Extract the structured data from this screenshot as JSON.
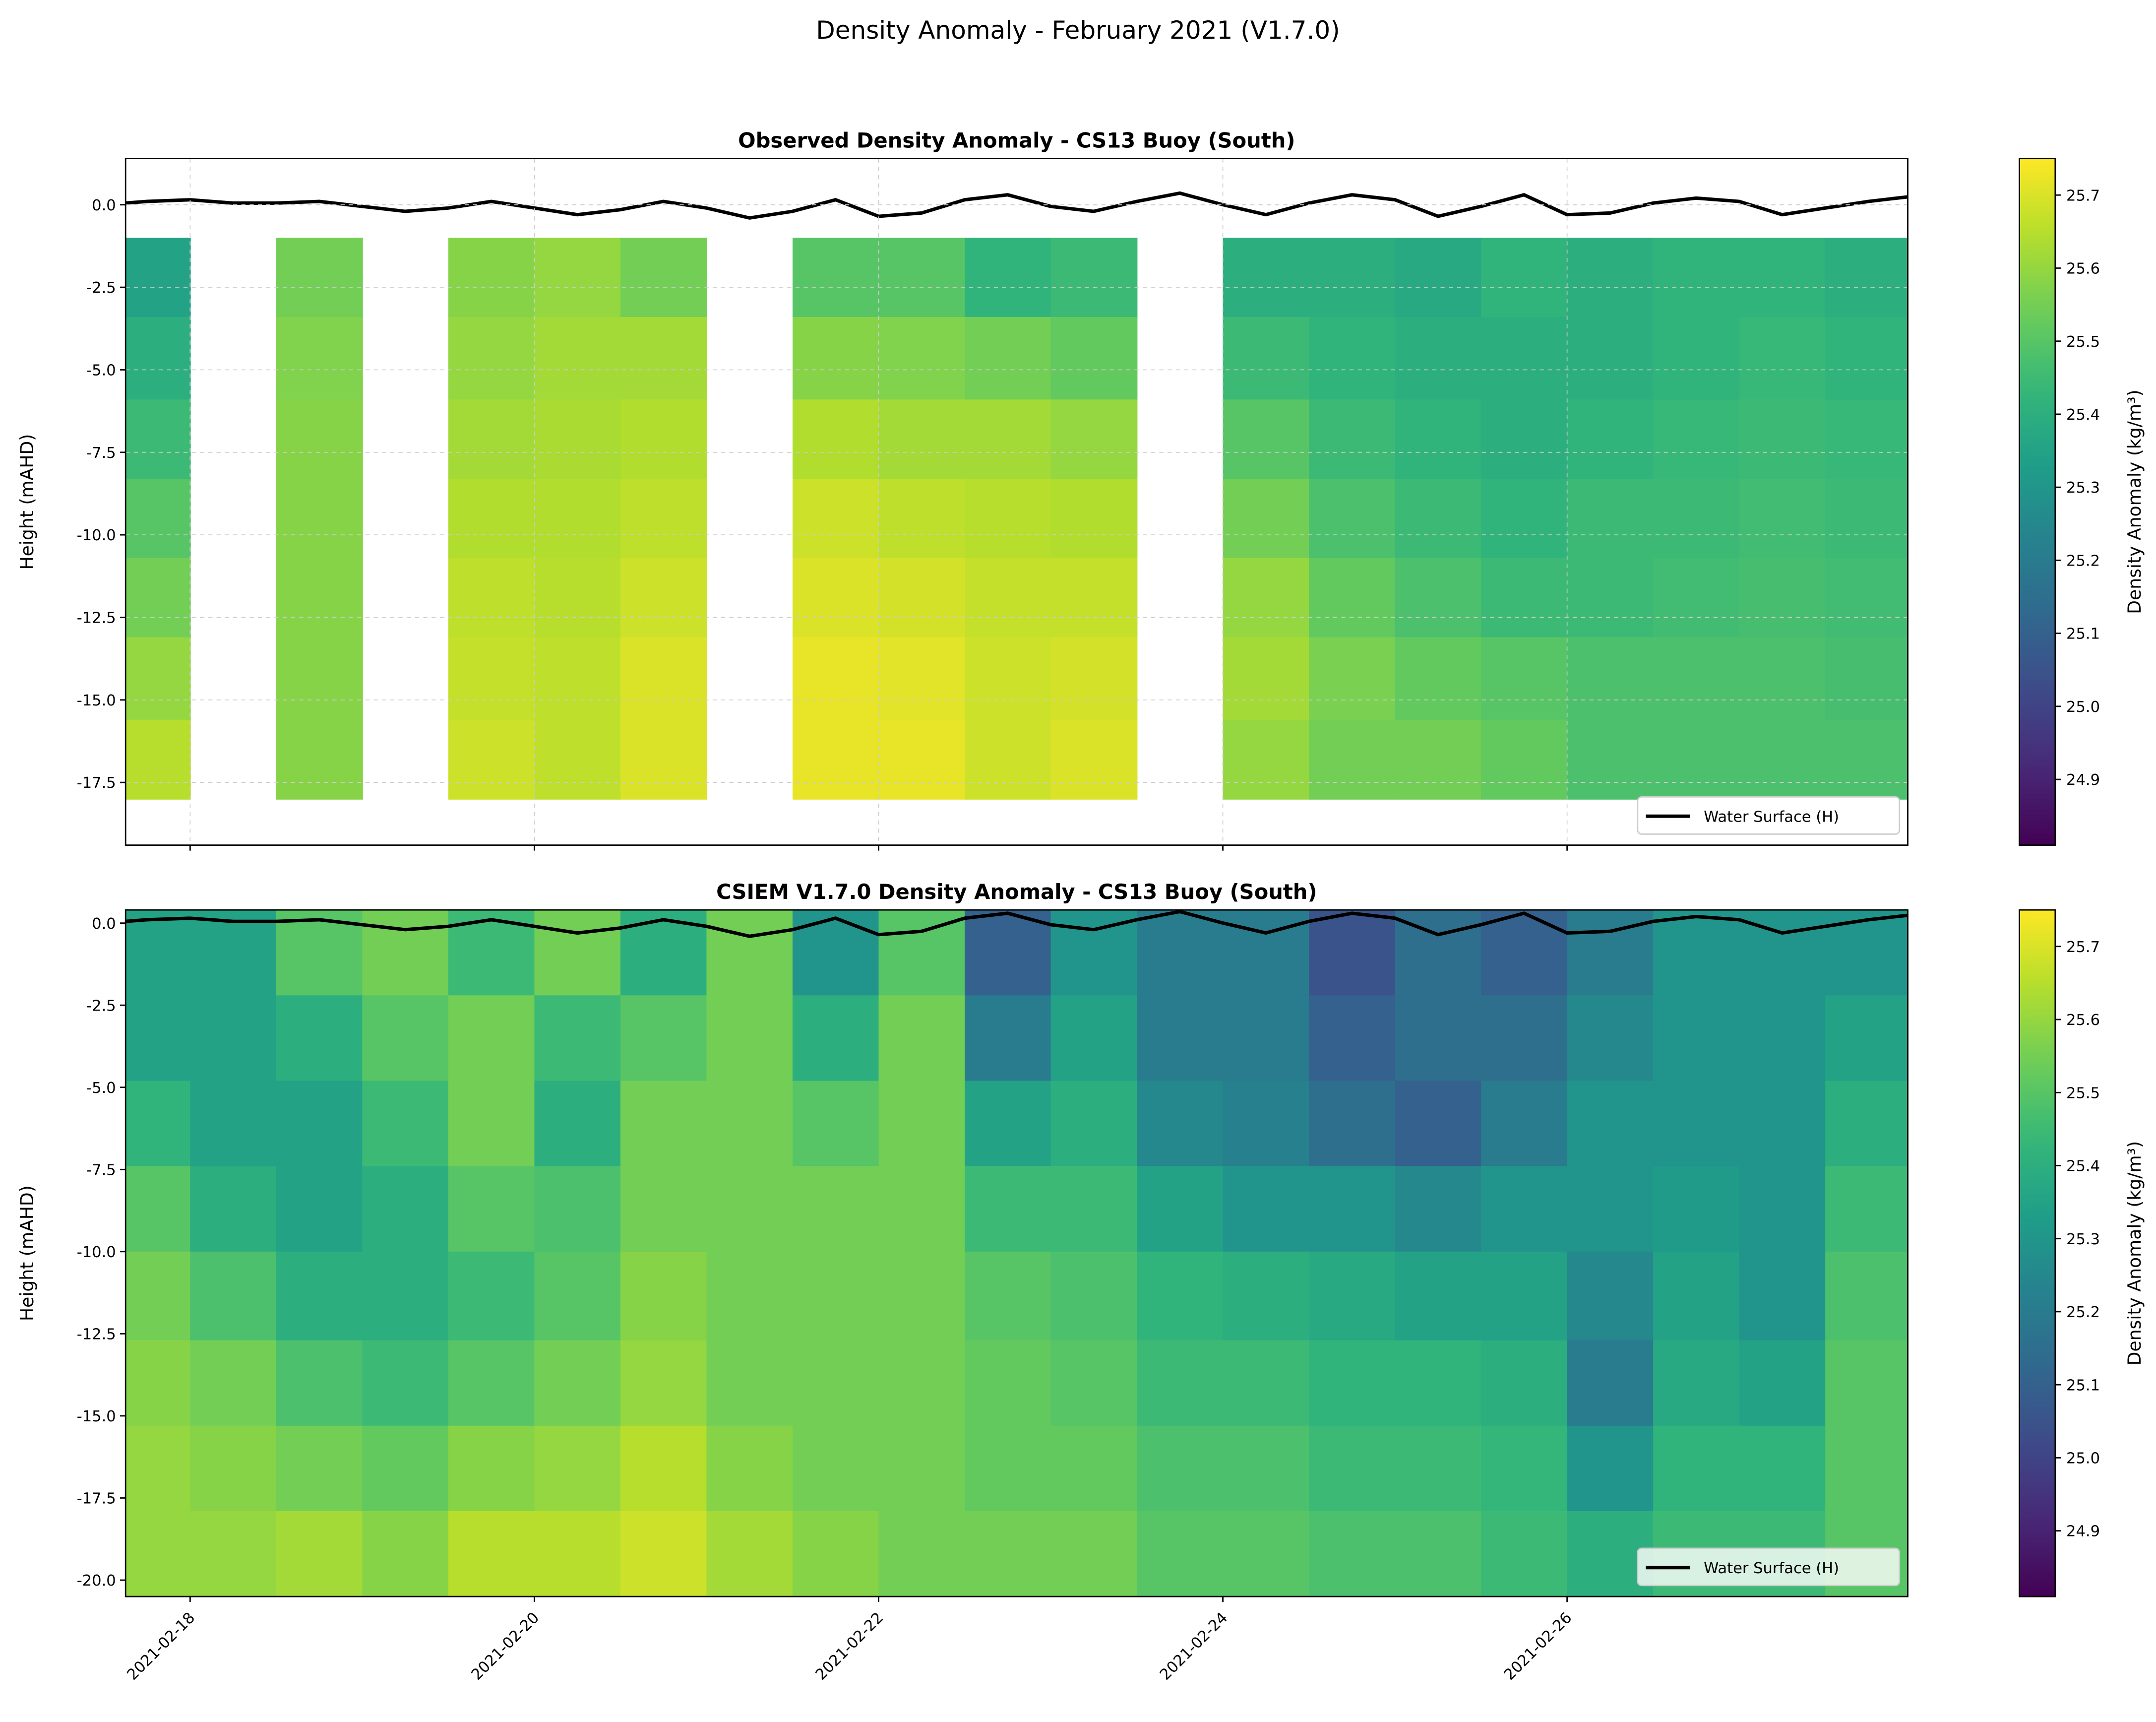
{
  "suptitle": "Density Anomaly - February 2021 (V1.7.0)",
  "colormap": "viridis",
  "chart_data": [
    {
      "type": "heatmap",
      "title": "Observed Density Anomaly - CS13 Buoy (South)",
      "ylabel": "Height (mAHD)",
      "xlabel": "",
      "xlim": [
        "2021-02-17T15:00",
        "2021-02-27T23:30"
      ],
      "ylim": [
        -19.4,
        1.4
      ],
      "grid": true,
      "x_ticks": [
        "2021-02-18",
        "2021-02-20",
        "2021-02-22",
        "2021-02-24",
        "2021-02-26"
      ],
      "y_ticks": [
        "0.0",
        "-2.5",
        "-5.0",
        "-7.5",
        "-10.0",
        "-12.5",
        "-15.0",
        "-17.5"
      ],
      "time_bins": [
        "2021-02-17T12:00",
        "2021-02-18T00:00",
        "2021-02-18T12:00",
        "2021-02-19T00:00",
        "2021-02-19T12:00",
        "2021-02-20T00:00",
        "2021-02-20T12:00",
        "2021-02-21T00:00",
        "2021-02-21T12:00",
        "2021-02-22T00:00",
        "2021-02-22T12:00",
        "2021-02-23T00:00",
        "2021-02-23T12:00",
        "2021-02-24T00:00",
        "2021-02-24T12:00",
        "2021-02-25T00:00",
        "2021-02-25T12:00",
        "2021-02-26T00:00",
        "2021-02-26T12:00",
        "2021-02-27T00:00",
        "2021-02-27T12:00"
      ],
      "depth_bins": [
        -1.0,
        -3.4,
        -5.9,
        -8.3,
        -10.7,
        -13.1,
        -15.6,
        -18.0
      ],
      "values": [
        [
          25.35,
          25.4,
          25.45,
          25.5,
          25.55,
          25.6,
          25.65
        ],
        null,
        [
          25.55,
          25.57,
          25.58,
          25.58,
          25.58,
          25.58,
          25.58
        ],
        null,
        [
          25.58,
          25.6,
          25.62,
          25.64,
          25.66,
          25.67,
          25.68
        ],
        [
          25.6,
          25.62,
          25.63,
          25.64,
          25.65,
          25.66,
          25.66
        ],
        [
          25.55,
          25.62,
          25.64,
          25.66,
          25.68,
          25.7,
          25.7
        ],
        null,
        [
          25.5,
          25.58,
          25.64,
          25.68,
          25.7,
          25.72,
          25.72
        ],
        [
          25.5,
          25.57,
          25.62,
          25.66,
          25.69,
          25.71,
          25.72
        ],
        [
          25.42,
          25.55,
          25.62,
          25.65,
          25.67,
          25.68,
          25.68
        ],
        [
          25.45,
          25.52,
          25.6,
          25.64,
          25.67,
          25.69,
          25.7
        ],
        null,
        [
          25.4,
          25.45,
          25.5,
          25.55,
          25.6,
          25.62,
          25.6
        ],
        [
          25.4,
          25.42,
          25.45,
          25.48,
          25.52,
          25.56,
          25.55
        ],
        [
          25.38,
          25.4,
          25.42,
          25.45,
          25.48,
          25.52,
          25.55
        ],
        [
          25.42,
          25.4,
          25.4,
          25.42,
          25.45,
          25.5,
          25.52
        ],
        [
          25.4,
          25.4,
          25.42,
          25.45,
          25.45,
          25.48,
          25.48
        ],
        [
          25.42,
          25.42,
          25.44,
          25.45,
          25.46,
          25.48,
          25.48
        ],
        [
          25.42,
          25.44,
          25.45,
          25.46,
          25.47,
          25.48,
          25.48
        ],
        [
          25.4,
          25.42,
          25.44,
          25.45,
          25.46,
          25.47,
          25.48
        ]
      ],
      "legend": {
        "label": "Water Surface (H)",
        "placement": "lower right"
      },
      "colorbar": {
        "label": "Density Anomaly (kg/m³)",
        "vmin": 24.81,
        "vmax": 25.75,
        "ticks": [
          "24.9",
          "25.0",
          "25.1",
          "25.2",
          "25.3",
          "25.4",
          "25.5",
          "25.6",
          "25.7"
        ]
      }
    },
    {
      "type": "heatmap",
      "title": "CSIEM V1.7.0 Density Anomaly - CS13 Buoy (South)",
      "ylabel": "Height (mAHD)",
      "xlabel": "",
      "xlim": [
        "2021-02-17T15:00",
        "2021-02-27T23:30"
      ],
      "ylim": [
        -20.5,
        0.4
      ],
      "grid": false,
      "x_ticks": [
        "2021-02-18",
        "2021-02-20",
        "2021-02-22",
        "2021-02-24",
        "2021-02-26"
      ],
      "y_ticks": [
        "0.0",
        "-2.5",
        "-5.0",
        "-7.5",
        "-10.0",
        "-12.5",
        "-15.0",
        "-17.5",
        "-20.0"
      ],
      "time_bins": [
        "2021-02-17T12:00",
        "2021-02-18T00:00",
        "2021-02-18T12:00",
        "2021-02-19T00:00",
        "2021-02-19T12:00",
        "2021-02-20T00:00",
        "2021-02-20T12:00",
        "2021-02-21T00:00",
        "2021-02-21T12:00",
        "2021-02-22T00:00",
        "2021-02-22T12:00",
        "2021-02-23T00:00",
        "2021-02-23T12:00",
        "2021-02-24T00:00",
        "2021-02-24T12:00",
        "2021-02-25T00:00",
        "2021-02-25T12:00",
        "2021-02-26T00:00",
        "2021-02-26T12:00",
        "2021-02-27T00:00",
        "2021-02-27T12:00"
      ],
      "depth_bins": [
        0.4,
        -2.2,
        -4.8,
        -7.4,
        -10.0,
        -12.7,
        -15.3,
        -17.9,
        -20.5
      ],
      "values": [
        [
          25.35,
          25.35,
          25.42,
          25.5,
          25.55,
          25.58,
          25.6,
          25.6
        ],
        [
          25.35,
          25.35,
          25.35,
          25.4,
          25.48,
          25.55,
          25.58,
          25.6
        ],
        [
          25.5,
          25.4,
          25.35,
          25.35,
          25.4,
          25.48,
          25.55,
          25.62
        ],
        [
          25.55,
          25.5,
          25.45,
          25.4,
          25.4,
          25.45,
          25.52,
          25.58
        ],
        [
          25.45,
          25.55,
          25.55,
          25.5,
          25.45,
          25.5,
          25.58,
          25.65
        ],
        [
          25.55,
          25.45,
          25.4,
          25.48,
          25.5,
          25.55,
          25.6,
          25.65
        ],
        [
          25.4,
          25.5,
          25.55,
          25.55,
          25.58,
          25.6,
          25.65,
          25.68
        ],
        [
          25.55,
          25.55,
          25.55,
          25.55,
          25.55,
          25.55,
          25.58,
          25.62
        ],
        [
          25.3,
          25.4,
          25.5,
          25.55,
          25.55,
          25.55,
          25.55,
          25.58
        ],
        [
          25.5,
          25.55,
          25.55,
          25.55,
          25.55,
          25.55,
          25.55,
          25.55
        ],
        [
          25.1,
          25.2,
          25.35,
          25.45,
          25.5,
          25.52,
          25.52,
          25.55
        ],
        [
          25.3,
          25.35,
          25.4,
          25.45,
          25.48,
          25.5,
          25.52,
          25.55
        ],
        [
          25.2,
          25.2,
          25.25,
          25.35,
          25.42,
          25.45,
          25.48,
          25.5
        ],
        [
          25.2,
          25.2,
          25.22,
          25.3,
          25.4,
          25.45,
          25.48,
          25.5
        ],
        [
          25.05,
          25.1,
          25.15,
          25.3,
          25.38,
          25.42,
          25.45,
          25.48
        ],
        [
          25.15,
          25.15,
          25.1,
          25.25,
          25.35,
          25.42,
          25.45,
          25.48
        ],
        [
          25.1,
          25.15,
          25.2,
          25.3,
          25.35,
          25.4,
          25.43,
          25.45
        ],
        [
          25.2,
          25.25,
          25.3,
          25.3,
          25.25,
          25.2,
          25.3,
          25.4
        ],
        [
          25.3,
          25.3,
          25.3,
          25.32,
          25.35,
          25.38,
          25.42,
          25.45
        ],
        [
          25.3,
          25.3,
          25.3,
          25.3,
          25.3,
          25.35,
          25.42,
          25.45
        ],
        [
          25.3,
          25.35,
          25.4,
          25.45,
          25.48,
          25.5,
          25.5,
          25.5
        ]
      ],
      "legend": {
        "label": "Water Surface (H)",
        "placement": "lower right"
      },
      "colorbar": {
        "label": "Density Anomaly (kg/m³)",
        "vmin": 24.81,
        "vmax": 25.75,
        "ticks": [
          "24.9",
          "25.0",
          "25.1",
          "25.2",
          "25.3",
          "25.4",
          "25.5",
          "25.6",
          "25.7"
        ]
      }
    }
  ],
  "water_surface": {
    "name": "Water Surface (H)",
    "color": "#000000",
    "start": "2021-02-17T12:00",
    "step_hours": 6,
    "values": [
      0.0,
      0.1,
      0.15,
      0.05,
      0.05,
      0.1,
      -0.05,
      -0.2,
      -0.1,
      0.1,
      -0.1,
      -0.3,
      -0.15,
      0.1,
      -0.1,
      -0.4,
      -0.2,
      0.15,
      -0.35,
      -0.25,
      0.15,
      0.3,
      -0.05,
      -0.2,
      0.1,
      0.35,
      0.0,
      -0.3,
      0.05,
      0.3,
      0.15,
      -0.35,
      -0.05,
      0.3,
      -0.3,
      -0.25,
      0.05,
      0.2,
      0.1,
      -0.3,
      -0.1,
      0.1,
      0.25
    ]
  }
}
